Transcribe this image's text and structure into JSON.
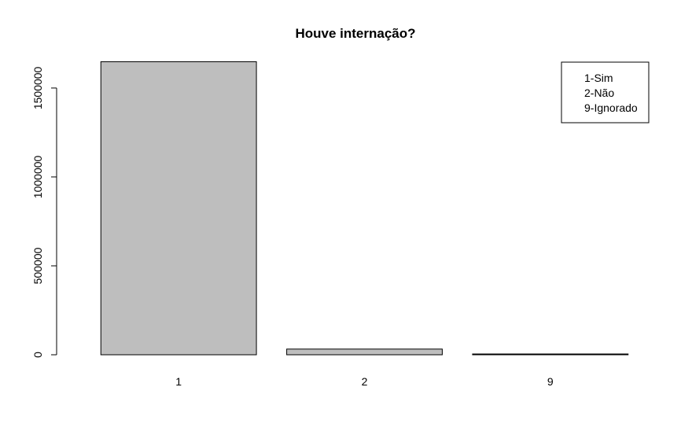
{
  "chart_data": {
    "type": "bar",
    "title": "Houve internação?",
    "xlabel": "",
    "ylabel": "",
    "categories": [
      "1",
      "2",
      "9"
    ],
    "values": [
      1648000,
      32000,
      3000
    ],
    "ylim": [
      0,
      1650000
    ],
    "yticks": [
      0,
      500000,
      1000000,
      1500000
    ],
    "ytick_labels": [
      "0",
      "500000",
      "1000000",
      "1500000"
    ],
    "colors": {
      "bar_fill": "#bebebe",
      "bar_stroke": "#000000"
    },
    "grid": false,
    "legend": {
      "placement": "top-right",
      "entries": [
        "1-Sim",
        "2-Não",
        "9-Ignorado"
      ]
    }
  }
}
